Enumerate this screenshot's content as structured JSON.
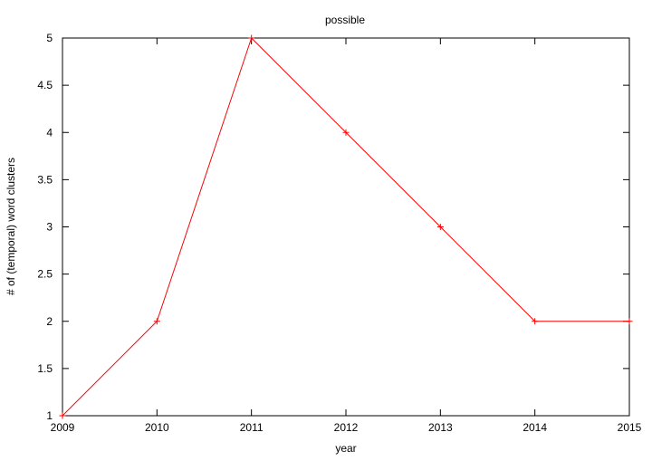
{
  "chart_data": {
    "type": "line",
    "title": "possible",
    "xlabel": "year",
    "ylabel": "# of (temporal) word clusters",
    "x": [
      2009,
      2010,
      2011,
      2012,
      2013,
      2014,
      2015
    ],
    "series": [
      {
        "values": [
          1,
          2,
          5,
          4,
          3,
          2,
          2
        ],
        "color": "#ff0000",
        "marker": "plus"
      }
    ],
    "xlim": [
      2009,
      2015
    ],
    "ylim": [
      1,
      5
    ],
    "xticks": [
      "2009",
      "2010",
      "2011",
      "2012",
      "2013",
      "2014",
      "2015"
    ],
    "yticks": [
      "1",
      "1.5",
      "2",
      "2.5",
      "3",
      "3.5",
      "4",
      "4.5",
      "5"
    ],
    "grid": false,
    "legend": "none"
  }
}
